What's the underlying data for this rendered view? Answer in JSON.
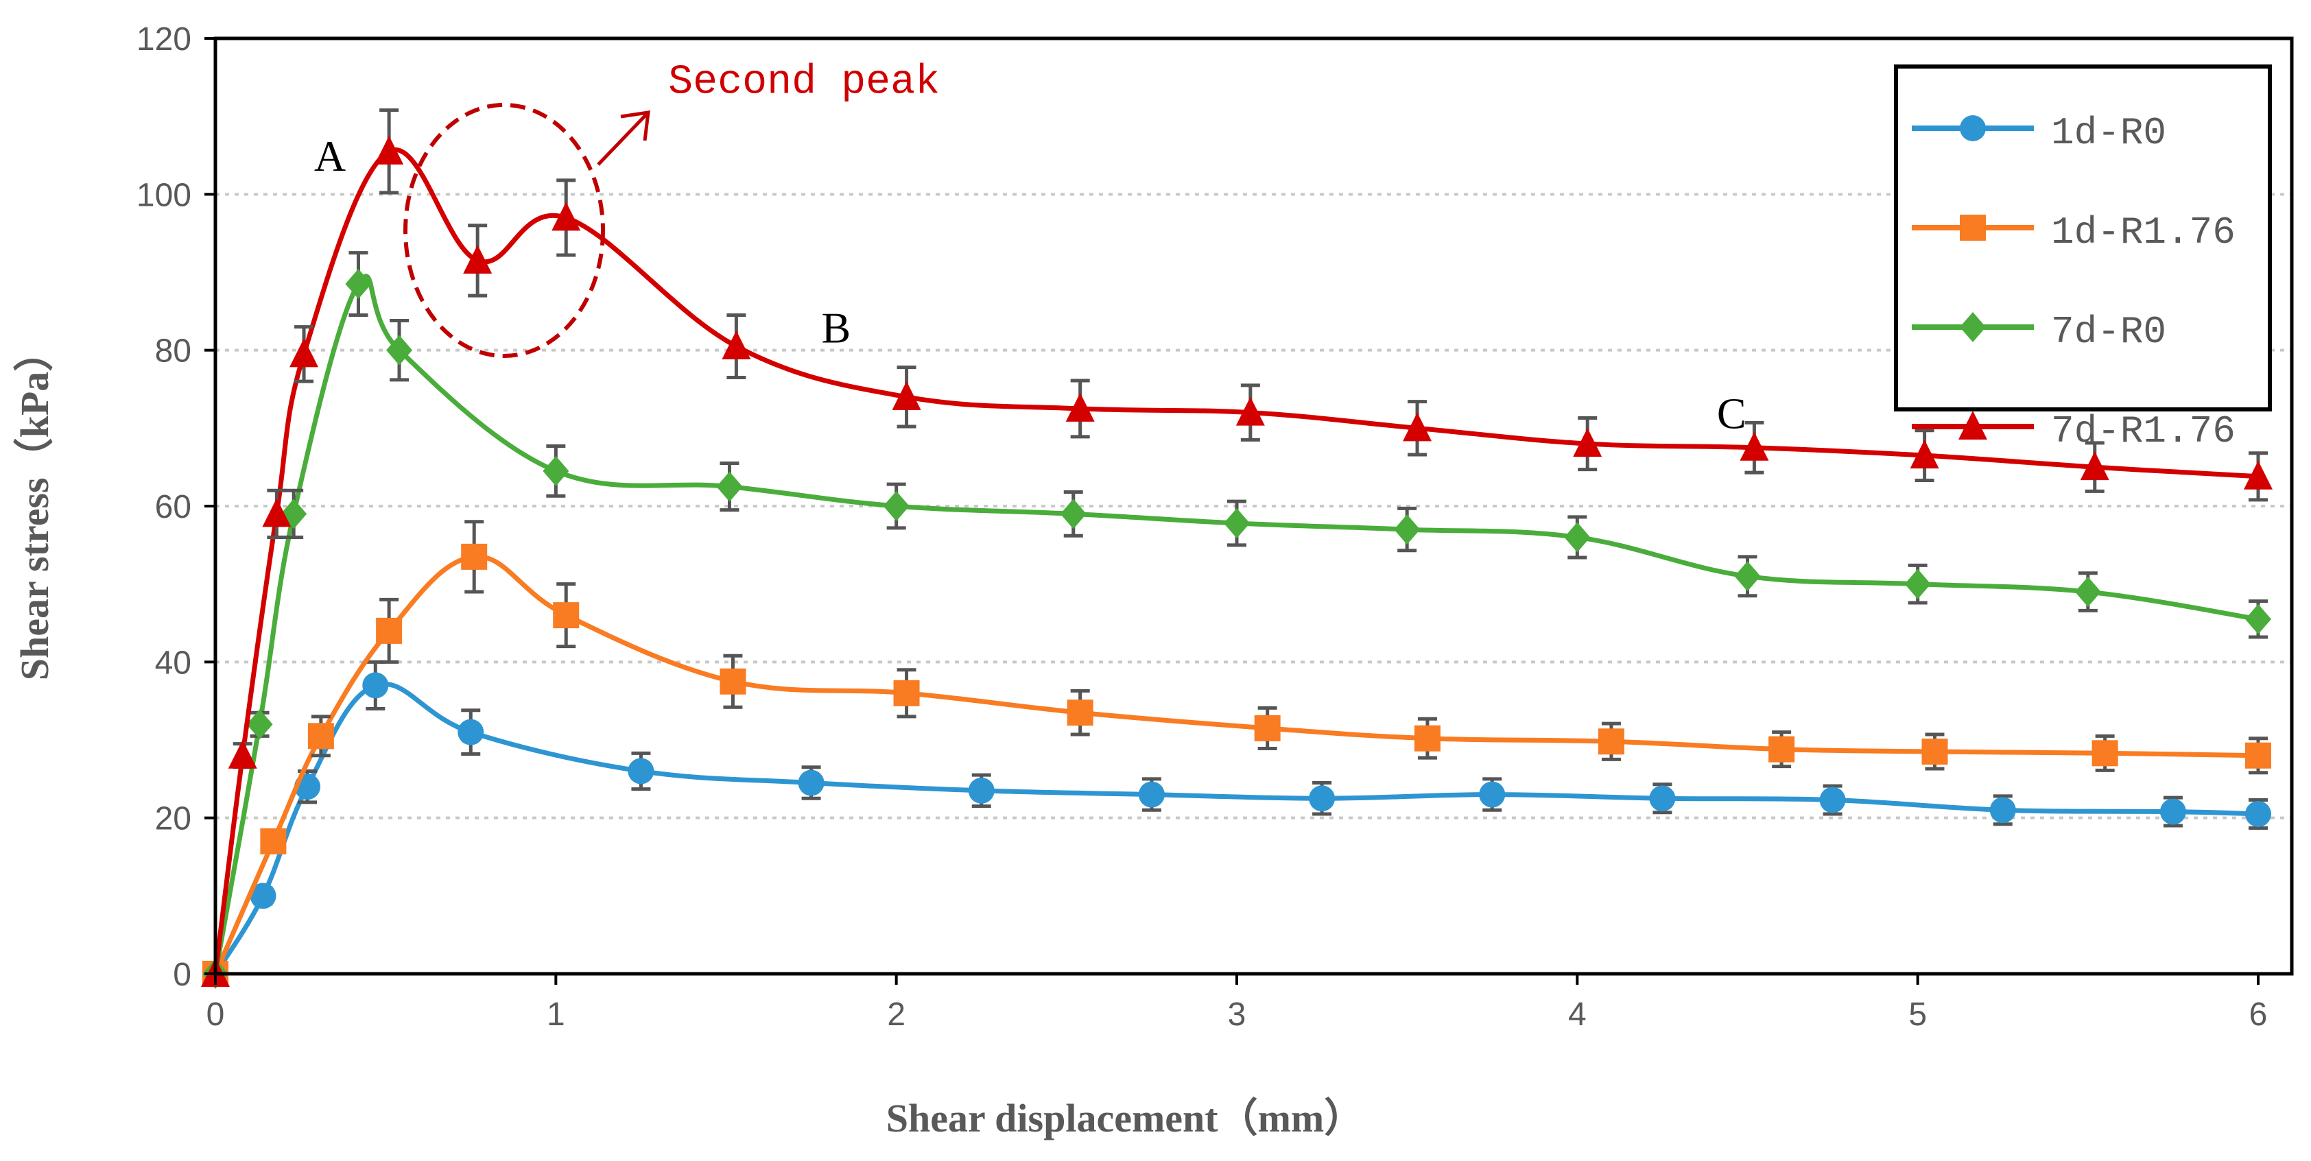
{
  "chart_data": {
    "type": "line",
    "title": "",
    "xlabel": "Shear displacement（mm）",
    "ylabel": "Shear stress（kPa）",
    "xlim": [
      0,
      6
    ],
    "ylim": [
      0,
      120
    ],
    "xticks": [
      "0",
      "1",
      "2",
      "3",
      "4",
      "5",
      "6"
    ],
    "yticks": [
      "0",
      "20",
      "40",
      "60",
      "80",
      "100",
      "120"
    ],
    "grid": "horizontal dotted",
    "legend_position": "top-right",
    "series": [
      {
        "name": "1d-R0",
        "color": "#2e95d3",
        "marker": "circle",
        "x": [
          0,
          0.14,
          0.27,
          0.47,
          0.75,
          1.25,
          1.75,
          2.25,
          2.75,
          3.25,
          3.75,
          4.25,
          4.75,
          5.25,
          5.75,
          6.0
        ],
        "y": [
          0,
          10,
          24,
          37,
          31,
          26,
          24.5,
          23.5,
          23,
          22.5,
          23,
          22.5,
          22.3,
          21,
          20.8,
          20.5
        ],
        "err": [
          0,
          1,
          2,
          3,
          2.8,
          2.3,
          2,
          2,
          2,
          2,
          2,
          1.8,
          1.8,
          1.8,
          1.8,
          1.8
        ]
      },
      {
        "name": "1d-R1.76",
        "color": "#f97b22",
        "marker": "square",
        "x": [
          0,
          0.17,
          0.31,
          0.51,
          0.76,
          1.03,
          1.52,
          2.03,
          2.54,
          3.09,
          3.56,
          4.1,
          4.6,
          5.05,
          5.55,
          6.0
        ],
        "y": [
          0,
          17,
          30.5,
          44,
          53.5,
          46,
          37.5,
          36,
          33.5,
          31.5,
          30.2,
          29.8,
          28.8,
          28.5,
          28.3,
          28
        ],
        "err": [
          0,
          1,
          2.5,
          4,
          4.5,
          4,
          3.3,
          3,
          2.8,
          2.6,
          2.5,
          2.3,
          2.2,
          2.2,
          2.2,
          2.2
        ]
      },
      {
        "name": "7d-R0",
        "color": "#4aad3b",
        "marker": "diamond",
        "x": [
          0,
          0.13,
          0.23,
          0.42,
          0.54,
          1.0,
          1.51,
          2.0,
          2.52,
          3.0,
          3.5,
          4.0,
          4.5,
          5.0,
          5.5,
          6.0
        ],
        "y": [
          0,
          32,
          59,
          88.5,
          80,
          64.5,
          62.5,
          60,
          59,
          57.8,
          57,
          56,
          51,
          50,
          49,
          45.5
        ],
        "err": [
          0,
          1.5,
          3,
          4,
          3.8,
          3.2,
          3,
          2.8,
          2.8,
          2.8,
          2.7,
          2.6,
          2.5,
          2.4,
          2.4,
          2.3
        ]
      },
      {
        "name": "7d-R1.76",
        "color": "#d40000",
        "marker": "triangle",
        "x": [
          0,
          0.08,
          0.18,
          0.26,
          0.51,
          0.77,
          1.03,
          1.53,
          2.03,
          2.54,
          3.04,
          3.53,
          4.03,
          4.52,
          5.02,
          5.52,
          6.0
        ],
        "y": [
          0,
          28,
          59,
          79.5,
          105.5,
          91.5,
          97,
          80.5,
          74,
          72.5,
          72,
          70,
          68,
          67.5,
          66.5,
          65,
          63.8
        ],
        "err": [
          0,
          1.5,
          3,
          3.5,
          5.3,
          4.5,
          4.8,
          4,
          3.8,
          3.6,
          3.5,
          3.4,
          3.3,
          3.2,
          3.2,
          3.1,
          3
        ]
      }
    ],
    "annotations": [
      {
        "text": "A",
        "x": 0.29,
        "y": 103
      },
      {
        "text": "B",
        "x": 1.78,
        "y": 81
      },
      {
        "text": "C",
        "x": 4.41,
        "y": 70
      },
      {
        "text": "Second peak",
        "x": 1.33,
        "y": 113
      }
    ]
  }
}
